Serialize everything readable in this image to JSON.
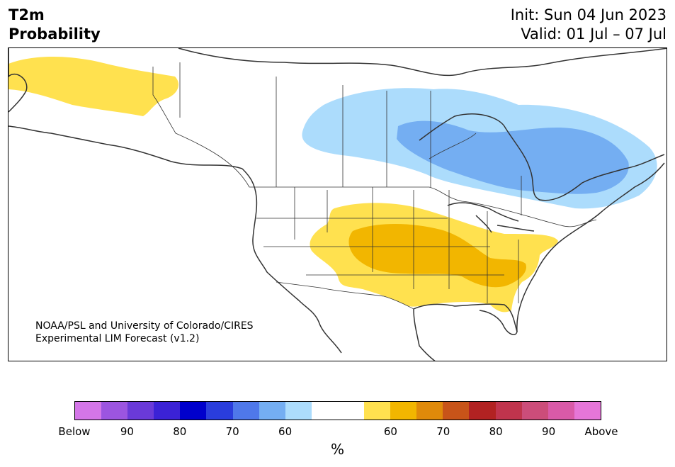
{
  "title": {
    "variable": "T2m",
    "subtitle": "Probability",
    "init": "Init: Sun 04 Jun 2023",
    "valid": "Valid: 01 Jul – 07 Jul"
  },
  "credit": {
    "line1": "NOAA/PSL and University of Colorado/CIRES",
    "line2": "Experimental LIM Forecast (v1.2)"
  },
  "colorbar": {
    "unit": "%",
    "colors": [
      "#d476e8",
      "#9c55e0",
      "#6a3ad8",
      "#3b22d6",
      "#0000cc",
      "#2a3ddc",
      "#4f78ea",
      "#74aef2",
      "#acdcfc",
      "#ffffff",
      "#ffffff",
      "#ffe14f",
      "#f2b600",
      "#e08a0a",
      "#c85419",
      "#b22222",
      "#c0344d",
      "#cc4d7a",
      "#d95aa8",
      "#e676d8"
    ],
    "tick_labels": [
      "Below",
      "90",
      "80",
      "70",
      "60",
      "60",
      "70",
      "80",
      "90",
      "Above"
    ]
  },
  "legend_colors": {
    "above_60": "#ffe14f",
    "above_70": "#f2b600",
    "below_60": "#acdcfc",
    "below_70": "#74aef2"
  }
}
